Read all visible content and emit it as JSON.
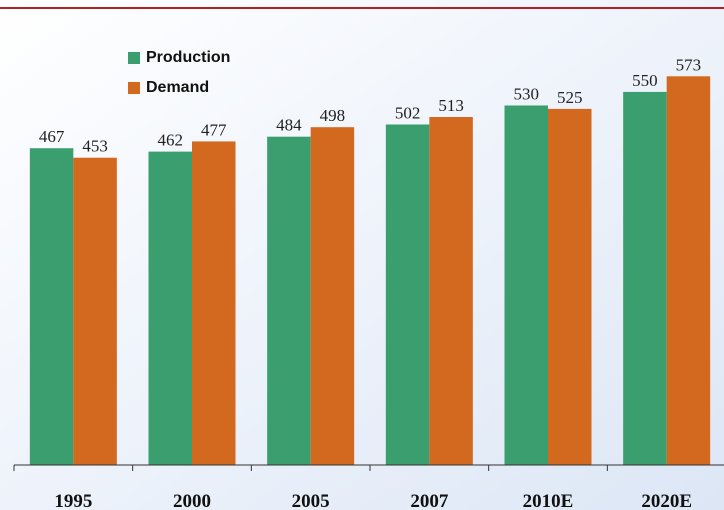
{
  "chart_data": {
    "type": "bar",
    "categories": [
      "1995",
      "2000",
      "2005",
      "2007",
      "2010E",
      "2020E"
    ],
    "series": [
      {
        "name": "Production",
        "color": "#3a9e6e",
        "values": [
          467,
          462,
          484,
          502,
          530,
          550
        ]
      },
      {
        "name": "Demand",
        "color": "#d2691e",
        "values": [
          453,
          477,
          498,
          513,
          525,
          573
        ]
      }
    ],
    "ylim": [
      0,
      600
    ]
  }
}
